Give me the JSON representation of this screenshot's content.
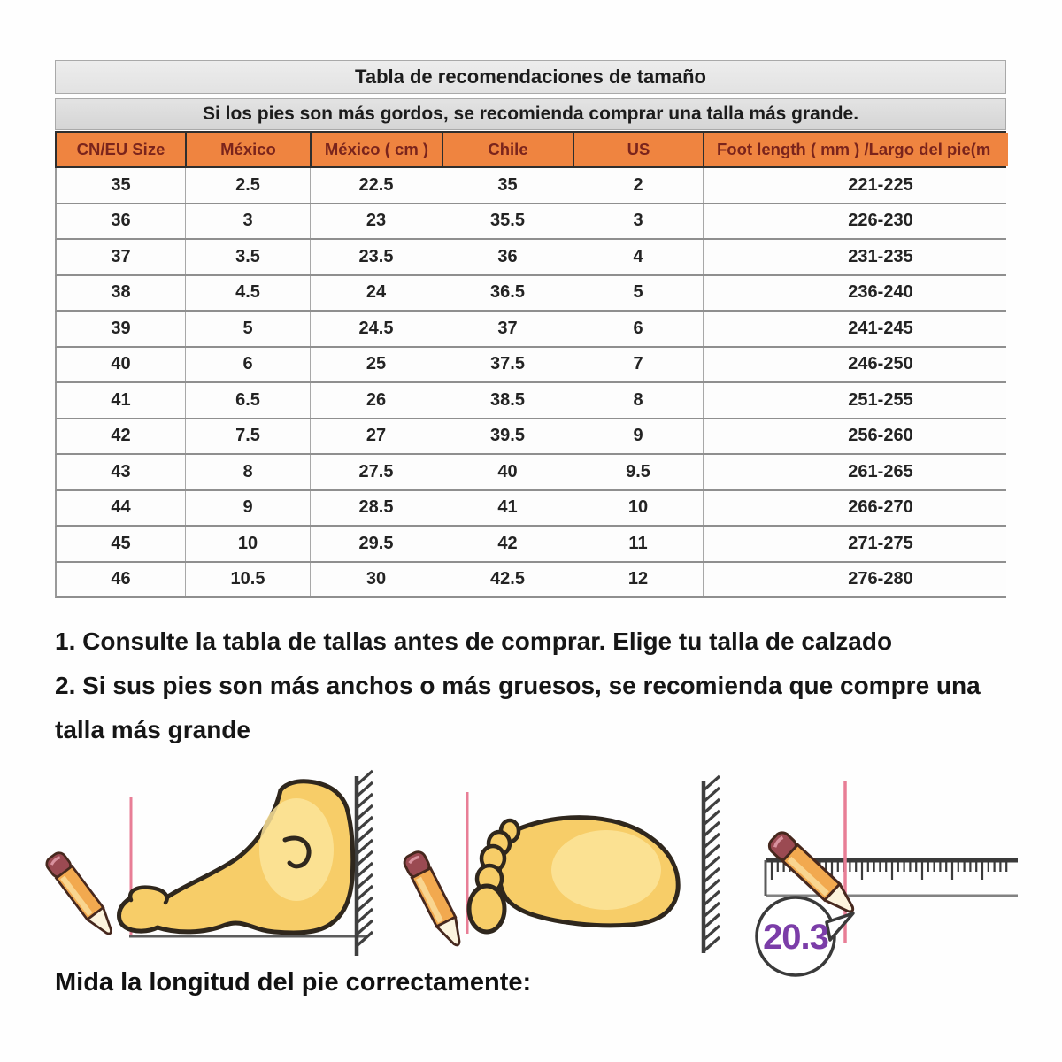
{
  "table": {
    "title": "Tabla de recomendaciones de tamaño",
    "subtitle": "Si los pies son más gordos, se recomienda comprar una talla más grande.",
    "columns": [
      "CN/EU Size",
      "México",
      "México ( cm )",
      "Chile",
      "US",
      "Foot length ( mm ) /Largo del pie(m"
    ],
    "rows": [
      [
        "35",
        "2.5",
        "22.5",
        "35",
        "2",
        "221-225"
      ],
      [
        "36",
        "3",
        "23",
        "35.5",
        "3",
        "226-230"
      ],
      [
        "37",
        "3.5",
        "23.5",
        "36",
        "4",
        "231-235"
      ],
      [
        "38",
        "4.5",
        "24",
        "36.5",
        "5",
        "236-240"
      ],
      [
        "39",
        "5",
        "24.5",
        "37",
        "6",
        "241-245"
      ],
      [
        "40",
        "6",
        "25",
        "37.5",
        "7",
        "246-250"
      ],
      [
        "41",
        "6.5",
        "26",
        "38.5",
        "8",
        "251-255"
      ],
      [
        "42",
        "7.5",
        "27",
        "39.5",
        "9",
        "256-260"
      ],
      [
        "43",
        "8",
        "27.5",
        "40",
        "9.5",
        "261-265"
      ],
      [
        "44",
        "9",
        "28.5",
        "41",
        "10",
        "266-270"
      ],
      [
        "45",
        "10",
        "29.5",
        "42",
        "11",
        "271-275"
      ],
      [
        "46",
        "10.5",
        "30",
        "42.5",
        "12",
        "276-280"
      ]
    ]
  },
  "notes": {
    "line1": "1. Consulte la tabla de tallas antes de comprar. Elige tu talla de calzado",
    "line2": "2. Si sus pies son más anchos o más gruesos, se recomienda que compre una",
    "line3": "talla más grande"
  },
  "measure": {
    "caption": "Mida la longitud del pie correctamente:",
    "bubble_value": "20.3"
  },
  "colors": {
    "header_orange": "#ef8440",
    "header_text_maroon": "#7a241c",
    "title_band_gray": "#e7e7e7",
    "subtitle_band_gray": "#dadada",
    "row_separator_gray": "#8f8f8f",
    "guide_line_pink": "#e87e96",
    "wall_hatch_gray": "#3f3f3f",
    "foot_yellow": "#f7cd68",
    "foot_highlight": "#fbe49a",
    "pencil_body_orange": "#f2a94f",
    "pencil_eraser_red": "#9b4a52",
    "bubble_text_purple": "#7b3da8"
  }
}
